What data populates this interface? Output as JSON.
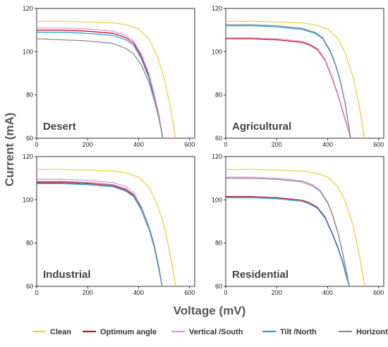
{
  "figure": {
    "ylabel": "Current (mA)",
    "xlabel": "Voltage (mV)"
  },
  "legend": [
    {
      "name": "Clean",
      "color": "#f0d040"
    },
    {
      "name": "Optimum angle",
      "color": "#c8102e"
    },
    {
      "name": "Vertical /South",
      "color": "#e696e6"
    },
    {
      "name": "Tilt /North",
      "color": "#29a3e0"
    },
    {
      "name": "Horizontal",
      "color": "#8c8c8c"
    }
  ],
  "chart_data": [
    {
      "type": "line",
      "title": "Desert",
      "xlim": [
        0,
        620
      ],
      "ylim": [
        60,
        120
      ],
      "xticks": [
        0,
        200,
        400,
        600
      ],
      "yticks": [
        60,
        80,
        100,
        120
      ],
      "series": [
        {
          "name": "Clean",
          "color": "#f0d040",
          "x": [
            0,
            100,
            200,
            300,
            350,
            400,
            440,
            470,
            500,
            520,
            535,
            545
          ],
          "y": [
            114,
            114,
            113.8,
            113.3,
            112.5,
            110.5,
            106,
            99,
            88,
            77,
            67,
            60
          ]
        },
        {
          "name": "Optimum angle",
          "color": "#c8102e",
          "x": [
            0,
            100,
            200,
            300,
            350,
            380,
            410,
            440,
            460,
            480,
            495
          ],
          "y": [
            110,
            110,
            109.5,
            108.5,
            106.5,
            104,
            98,
            89,
            80,
            70,
            60
          ]
        },
        {
          "name": "Vertical /South",
          "color": "#e696e6",
          "x": [
            0,
            100,
            200,
            300,
            350,
            380,
            410,
            440,
            460,
            480,
            495
          ],
          "y": [
            111,
            111,
            110.5,
            109.5,
            107.5,
            105,
            99,
            90,
            81,
            71,
            60
          ]
        },
        {
          "name": "Tilt /North",
          "color": "#29a3e0",
          "x": [
            0,
            100,
            200,
            300,
            350,
            380,
            410,
            440,
            460,
            480,
            495
          ],
          "y": [
            109,
            109,
            108.5,
            107.5,
            105.5,
            103,
            97,
            88,
            79,
            69,
            60
          ]
        },
        {
          "name": "Horizontal",
          "color": "#8c8c8c",
          "x": [
            0,
            100,
            200,
            300,
            350,
            380,
            410,
            440,
            460,
            480,
            495
          ],
          "y": [
            106,
            105.5,
            105,
            103.8,
            101.5,
            99,
            94,
            86,
            78,
            69,
            60
          ]
        }
      ]
    },
    {
      "type": "line",
      "title": "Agricultural",
      "xlim": [
        0,
        620
      ],
      "ylim": [
        60,
        120
      ],
      "xticks": [
        0,
        200,
        400,
        600
      ],
      "yticks": [
        60,
        80,
        100,
        120
      ],
      "series": [
        {
          "name": "Clean",
          "color": "#f0d040",
          "x": [
            0,
            100,
            200,
            300,
            350,
            400,
            440,
            470,
            500,
            520,
            535,
            545
          ],
          "y": [
            114,
            114,
            113.8,
            113.3,
            112.5,
            110.5,
            106,
            99,
            88,
            77,
            67,
            60
          ]
        },
        {
          "name": "Optimum angle",
          "color": "#c8102e",
          "x": [
            0,
            100,
            200,
            300,
            330,
            360,
            390,
            420,
            440,
            460,
            475,
            490
          ],
          "y": [
            106,
            106,
            105.5,
            104.3,
            103,
            101,
            96,
            87,
            80,
            72,
            66,
            60
          ]
        },
        {
          "name": "Vertical /South",
          "color": "#e696e6",
          "x": [
            0,
            100,
            200,
            300,
            330,
            360,
            390,
            420,
            440,
            460,
            475,
            490
          ],
          "y": [
            106.5,
            106.5,
            106,
            104.8,
            103.5,
            101.5,
            96.5,
            87.5,
            80.5,
            72.5,
            66.5,
            60
          ]
        },
        {
          "name": "Tilt /North",
          "color": "#29a3e0",
          "x": [
            0,
            100,
            200,
            300,
            350,
            380,
            410,
            430,
            450,
            470,
            490
          ],
          "y": [
            112,
            112,
            111.5,
            110.3,
            108.5,
            106,
            100,
            94,
            86,
            75,
            60
          ]
        },
        {
          "name": "Horizontal",
          "color": "#8c8c8c",
          "x": [
            0,
            100,
            200,
            300,
            350,
            380,
            410,
            430,
            450,
            470,
            490
          ],
          "y": [
            112.5,
            112.5,
            112,
            110.8,
            109,
            106.5,
            100.5,
            94.5,
            86.5,
            75.5,
            60
          ]
        }
      ]
    },
    {
      "type": "line",
      "title": "Industrial",
      "xlim": [
        0,
        620
      ],
      "ylim": [
        60,
        120
      ],
      "xticks": [
        0,
        200,
        400,
        600
      ],
      "yticks": [
        60,
        80,
        100,
        120
      ],
      "series": [
        {
          "name": "Clean",
          "color": "#f0d040",
          "x": [
            0,
            100,
            200,
            300,
            350,
            400,
            440,
            470,
            500,
            520,
            535,
            545
          ],
          "y": [
            114,
            114,
            113.8,
            113.3,
            112.5,
            110.5,
            106,
            99,
            88,
            77,
            67,
            60
          ]
        },
        {
          "name": "Optimum angle",
          "color": "#c8102e",
          "x": [
            0,
            100,
            200,
            300,
            350,
            380,
            410,
            440,
            460,
            480,
            492
          ],
          "y": [
            108,
            108,
            107.5,
            106.5,
            104.5,
            102,
            96,
            87,
            79,
            68,
            60
          ]
        },
        {
          "name": "Vertical /South",
          "color": "#e696e6",
          "x": [
            0,
            100,
            200,
            300,
            350,
            380,
            410,
            440,
            460,
            480,
            492
          ],
          "y": [
            109.5,
            109.5,
            109,
            108,
            106,
            103.5,
            97,
            88,
            80,
            69,
            60
          ]
        },
        {
          "name": "Tilt /North",
          "color": "#29a3e0",
          "x": [
            0,
            100,
            200,
            300,
            350,
            380,
            410,
            440,
            460,
            480,
            492
          ],
          "y": [
            107.5,
            107.5,
            107,
            106,
            104,
            101.5,
            95.5,
            86.5,
            78.5,
            67.5,
            60
          ]
        },
        {
          "name": "Horizontal",
          "color": "#8c8c8c",
          "x": [
            0,
            100,
            200,
            300,
            350,
            380,
            410,
            440,
            460,
            480,
            492
          ],
          "y": [
            108.5,
            108.5,
            108,
            107,
            105,
            102.5,
            96.5,
            87.5,
            79.5,
            68.5,
            60
          ]
        }
      ]
    },
    {
      "type": "line",
      "title": "Residential",
      "xlim": [
        0,
        620
      ],
      "ylim": [
        60,
        120
      ],
      "xticks": [
        0,
        200,
        400,
        600
      ],
      "yticks": [
        60,
        80,
        100,
        120
      ],
      "series": [
        {
          "name": "Clean",
          "color": "#f0d040",
          "x": [
            0,
            100,
            200,
            300,
            350,
            400,
            440,
            470,
            500,
            520,
            535,
            545
          ],
          "y": [
            114,
            114,
            113.8,
            113.3,
            112.5,
            110.5,
            106,
            99,
            88,
            77,
            67,
            60
          ]
        },
        {
          "name": "Optimum angle",
          "color": "#c8102e",
          "x": [
            0,
            100,
            200,
            300,
            330,
            360,
            390,
            420,
            440,
            460,
            475,
            485
          ],
          "y": [
            101.5,
            101.5,
            101,
            99.8,
            98.5,
            96.5,
            92,
            84,
            78,
            71,
            64,
            60
          ]
        },
        {
          "name": "Vertical /South",
          "color": "#e696e6",
          "x": [
            0,
            100,
            200,
            300,
            340,
            370,
            400,
            420,
            440,
            460,
            475,
            485
          ],
          "y": [
            110.5,
            110.5,
            110,
            108.8,
            107,
            104.5,
            99,
            93,
            85,
            75,
            66,
            60
          ]
        },
        {
          "name": "Tilt /North",
          "color": "#29a3e0",
          "x": [
            0,
            100,
            200,
            300,
            330,
            360,
            390,
            420,
            440,
            460,
            475,
            485
          ],
          "y": [
            101,
            101,
            100.5,
            99.3,
            98,
            96,
            91.5,
            83.5,
            77.5,
            70.5,
            63.5,
            60
          ]
        },
        {
          "name": "Horizontal",
          "color": "#8c8c8c",
          "x": [
            0,
            100,
            200,
            300,
            340,
            370,
            400,
            420,
            440,
            460,
            475,
            485
          ],
          "y": [
            110,
            110,
            109.5,
            108.3,
            106.5,
            104,
            98.5,
            92.5,
            84.5,
            74.5,
            65.5,
            60
          ]
        }
      ]
    }
  ]
}
